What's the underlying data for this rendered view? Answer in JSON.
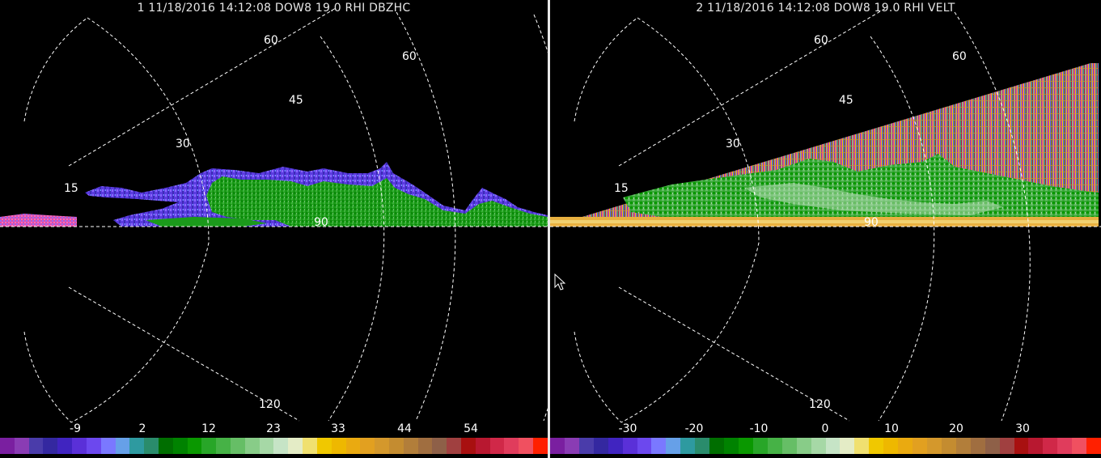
{
  "panels": [
    {
      "title": "1 11/18/2016 14:12:08 DOW8 19.0 RHI DBZHC",
      "range_labels": [
        "15",
        "30",
        "45",
        "60",
        "60",
        "90",
        "120"
      ],
      "colorbar": {
        "tick_labels": [
          "-9",
          "2",
          "12",
          "23",
          "33",
          "44",
          "54"
        ],
        "colors": [
          "#7a1fa0",
          "#8a3cb4",
          "#4a3caa",
          "#3428a0",
          "#4024c0",
          "#5a30d8",
          "#6c48ee",
          "#7a78ff",
          "#66a0e8",
          "#2e9aa0",
          "#2a8c6c",
          "#006e00",
          "#008200",
          "#0a9800",
          "#28a628",
          "#46b246",
          "#66be66",
          "#88cc88",
          "#a6d8a6",
          "#c6e4c6",
          "#e4ecc6",
          "#f0e070",
          "#f0c800",
          "#eeb800",
          "#eaaa10",
          "#e2a020",
          "#d4982c",
          "#c48c30",
          "#b27e3a",
          "#a06e40",
          "#8e6048",
          "#a04040",
          "#a81010",
          "#b81830",
          "#d02848",
          "#e03c5c",
          "#f05060",
          "#ff2000"
        ]
      }
    },
    {
      "title": "2 11/18/2016 14:12:08 DOW8 19.0 RHI VELT",
      "range_labels": [
        "15",
        "30",
        "45",
        "60",
        "60",
        "90",
        "120"
      ],
      "colorbar": {
        "tick_labels": [
          "-30",
          "-20",
          "-10",
          "0",
          "10",
          "20",
          "30"
        ],
        "colors": [
          "#7a1fa0",
          "#8a3cb4",
          "#4a3caa",
          "#3428a0",
          "#4024c0",
          "#5a30d8",
          "#6c48ee",
          "#7a78ff",
          "#66a0e8",
          "#2e9aa0",
          "#2a8c6c",
          "#006e00",
          "#008200",
          "#0a9800",
          "#28a628",
          "#46b246",
          "#66be66",
          "#88cc88",
          "#a6d8a6",
          "#c6e4c6",
          "#e4ecc6",
          "#f0e070",
          "#f0c800",
          "#eeb800",
          "#eaaa10",
          "#e2a020",
          "#d4982c",
          "#c48c30",
          "#b27e3a",
          "#a06e40",
          "#8e6048",
          "#a04040",
          "#a81010",
          "#b81830",
          "#d02848",
          "#e03c5c",
          "#f05060",
          "#ff2000"
        ]
      }
    }
  ]
}
